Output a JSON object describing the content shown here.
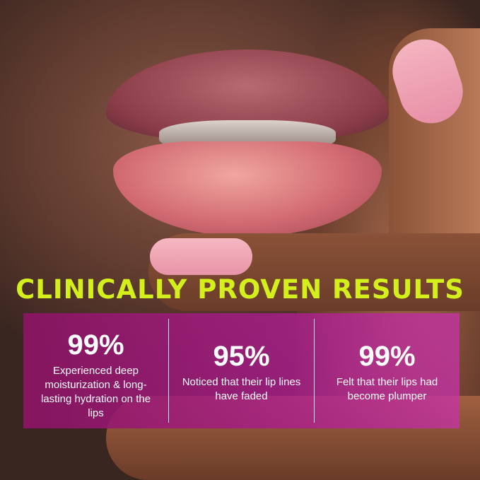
{
  "headline": "CLINICALLY PROVEN RESULTS",
  "colors": {
    "headline": "#d4f01c",
    "panel": "#a0207a"
  },
  "stats": [
    {
      "value": "99%",
      "description": "Experienced deep moisturization & long-lasting hydration on the lips"
    },
    {
      "value": "95%",
      "description": "Noticed that their lip lines have faded"
    },
    {
      "value": "99%",
      "description": "Felt that their lips had become plumper"
    }
  ]
}
